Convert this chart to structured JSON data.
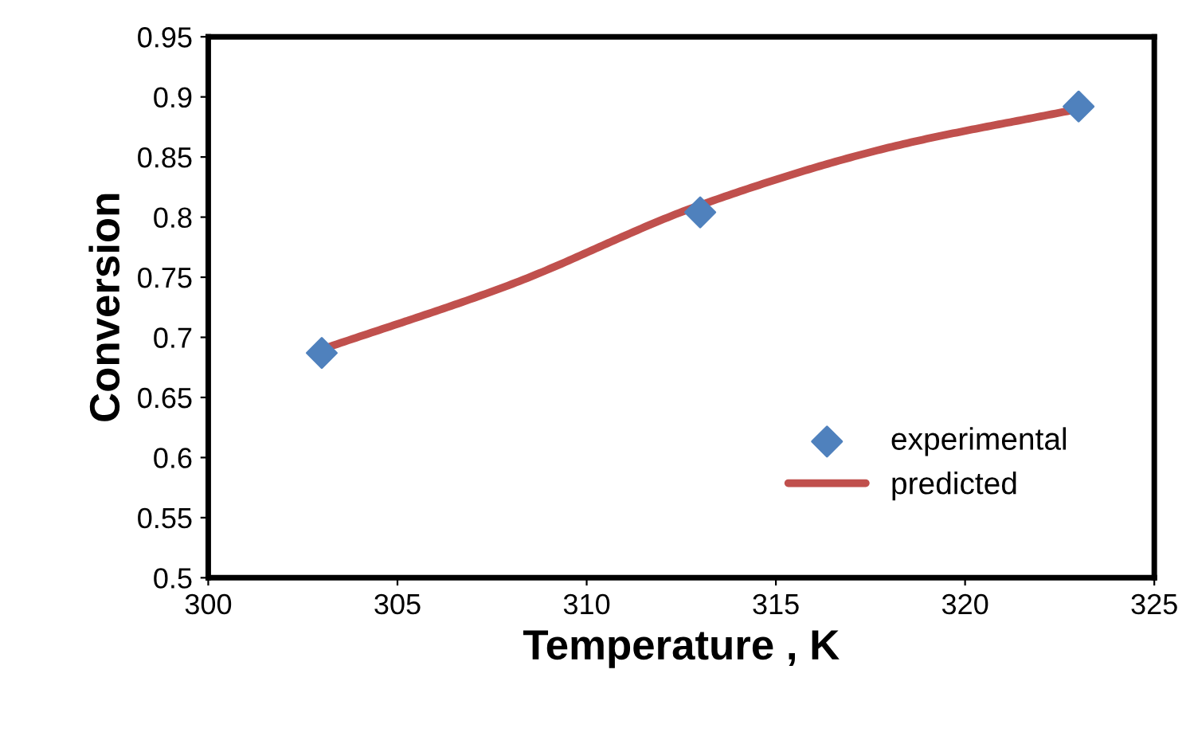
{
  "chart_data": {
    "type": "scatter",
    "xlabel": "Temperature , K",
    "ylabel": "Conversion",
    "xlim": [
      300,
      325
    ],
    "xticks": [
      300,
      305,
      310,
      315,
      320,
      325
    ],
    "ylim": [
      0.5,
      0.95
    ],
    "yticks": [
      0.5,
      0.55,
      0.6,
      0.65,
      0.7,
      0.75,
      0.8,
      0.85,
      0.9,
      0.95
    ],
    "grid": false,
    "legend": "bottom right",
    "series": [
      {
        "name": "experimental",
        "marker": "diamond",
        "color": "#4f81bd",
        "x": [
          303,
          313,
          323
        ],
        "values": [
          0.687,
          0.804,
          0.892
        ]
      },
      {
        "name": "predicted",
        "type": "line",
        "marker": "none",
        "line_style": "solid",
        "color": "#c0504d",
        "x": [
          303,
          308,
          313,
          318,
          323
        ],
        "values": [
          0.69,
          0.744,
          0.81,
          0.858,
          0.89
        ]
      }
    ]
  }
}
